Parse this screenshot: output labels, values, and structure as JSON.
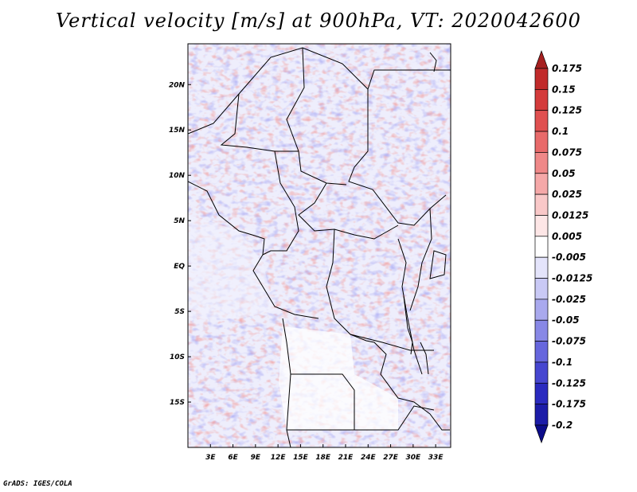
{
  "title": "Vertical velocity [m/s] at 900hPa, VT: 2020042600",
  "footer": "GrADS: IGES/COLA",
  "map": {
    "lon_range": [
      0,
      35
    ],
    "lat_range": [
      -20,
      24.5
    ],
    "x_ticks": [
      "3E",
      "6E",
      "9E",
      "12E",
      "15E",
      "18E",
      "21E",
      "24E",
      "27E",
      "30E",
      "33E"
    ],
    "y_ticks": [
      "20N",
      "15N",
      "10N",
      "5N",
      "EQ",
      "5S",
      "10S",
      "15S"
    ]
  },
  "colorbar": {
    "levels": [
      "0.175",
      "0.15",
      "0.125",
      "0.1",
      "0.075",
      "0.05",
      "0.025",
      "0.0125",
      "0.005",
      "-0.005",
      "-0.0125",
      "-0.025",
      "-0.05",
      "-0.075",
      "-0.1",
      "-0.125",
      "-0.175",
      "-0.2"
    ],
    "colors": [
      "#a51f1f",
      "#c12b2b",
      "#d43b3b",
      "#e05050",
      "#e86a6a",
      "#ef8888",
      "#f5a8a8",
      "#f9c8c8",
      "#fde6e6",
      "#ffffff",
      "#e4e4fb",
      "#c9c9f5",
      "#a9a9ee",
      "#8888e6",
      "#6666dd",
      "#4646d0",
      "#2a2abf",
      "#1c1ca8",
      "#0c0c8a"
    ]
  }
}
